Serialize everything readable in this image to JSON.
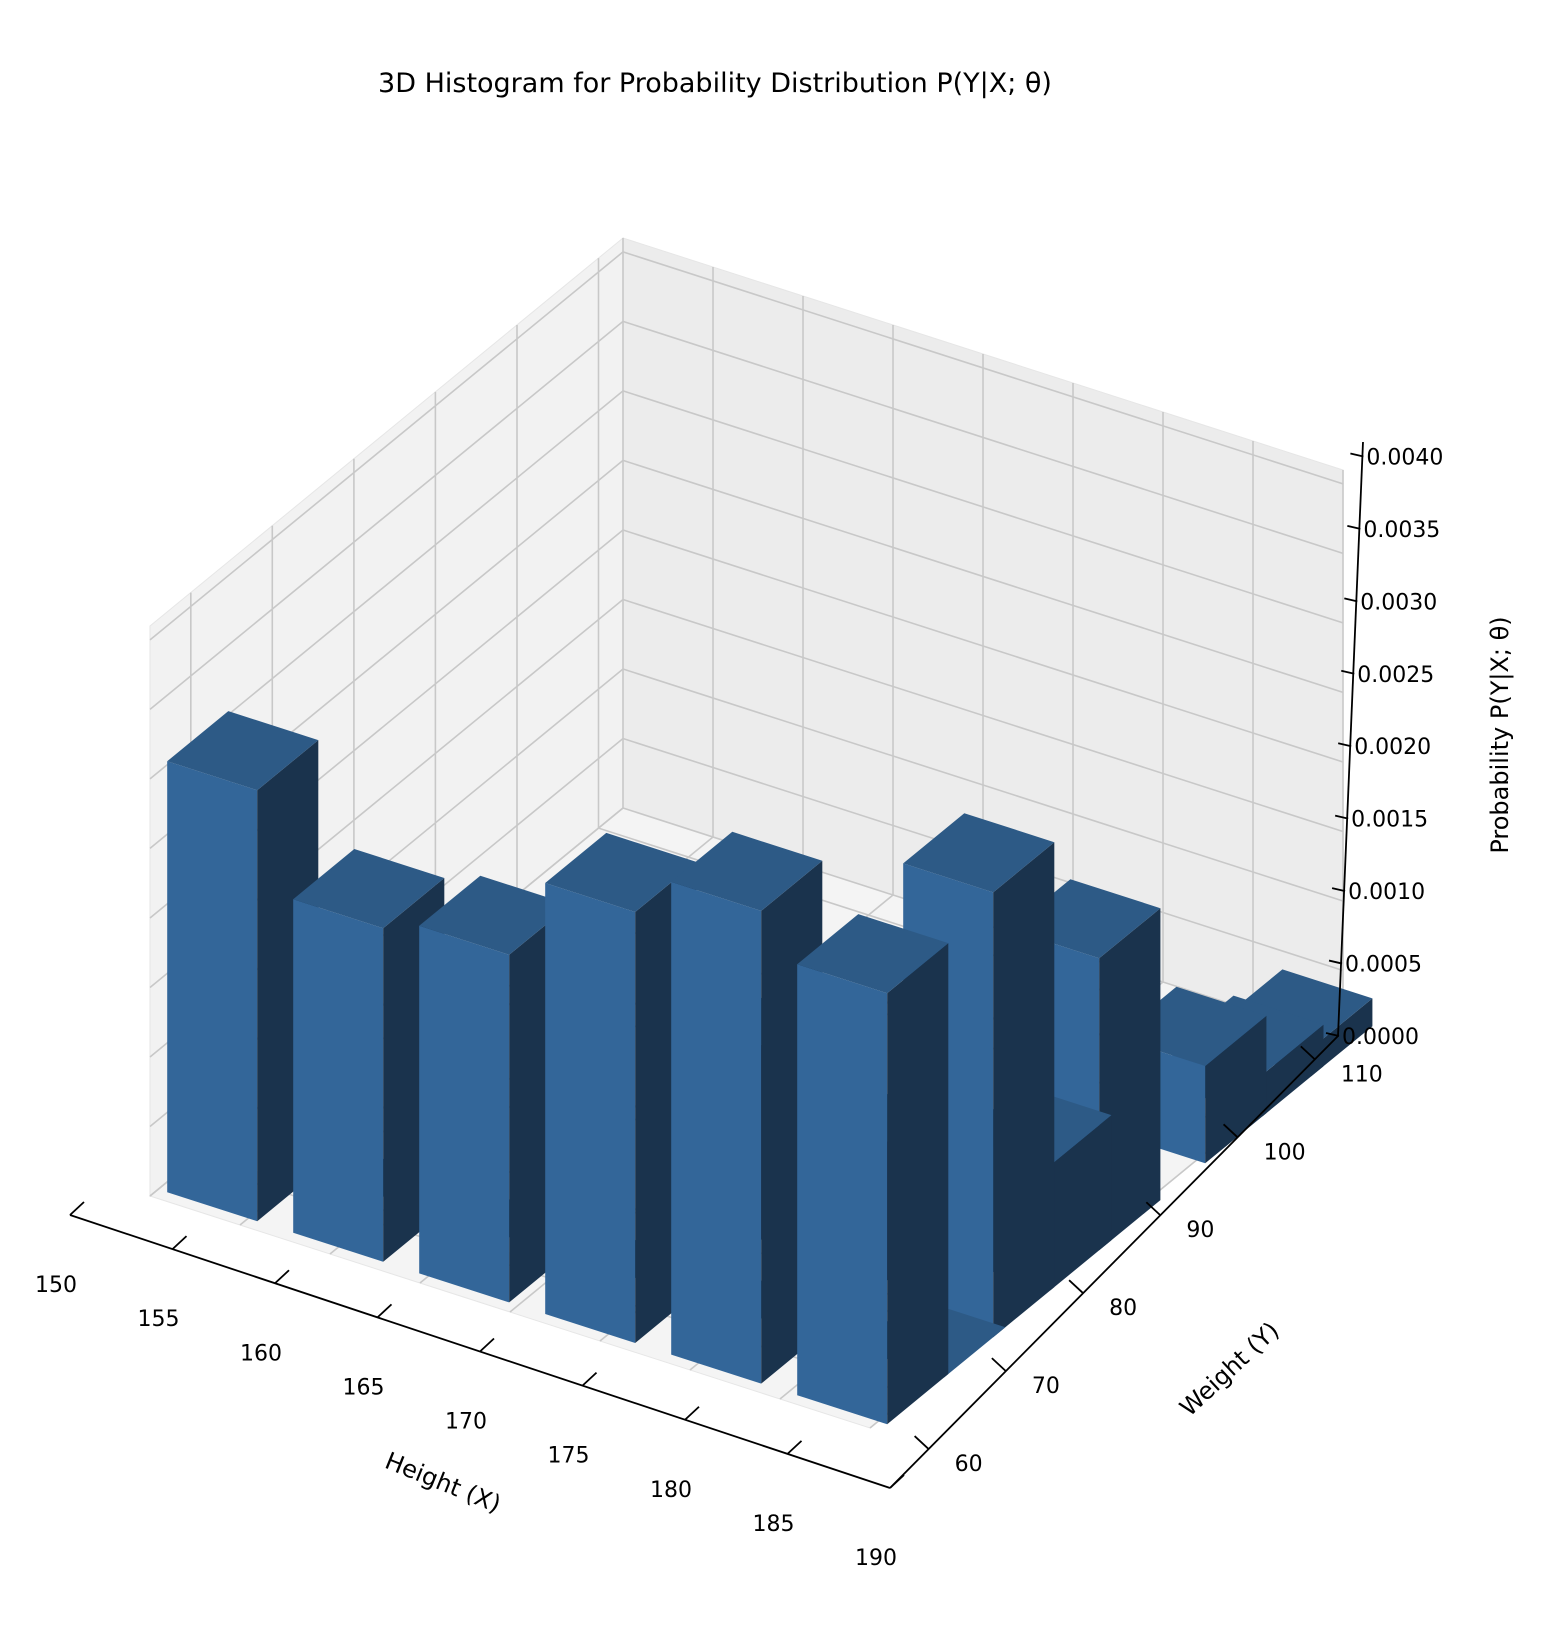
{
  "chart_data": {
    "type": "bar3d",
    "title": "3D Histogram for Probability Distribution P(Y|X; θ)",
    "xlabel": "Height (X)",
    "ylabel": "Weight (Y)",
    "zlabel": "Probability P(Y|X; θ)",
    "x_ticks": [
      "150",
      "155",
      "160",
      "165",
      "170",
      "175",
      "180",
      "185",
      "190"
    ],
    "y_ticks": [
      "60",
      "70",
      "80",
      "90",
      "100",
      "110"
    ],
    "z_ticks": [
      "0.0000",
      "0.0005",
      "0.0010",
      "0.0015",
      "0.0020",
      "0.0025",
      "0.0030",
      "0.0035",
      "0.0040"
    ],
    "xlim": [
      150,
      190
    ],
    "ylim": [
      55,
      113
    ],
    "zlim": [
      0,
      0.0041
    ],
    "grid": true,
    "bar_color": "#336699",
    "bars": [
      {
        "x": 150.5,
        "y": 56,
        "z": 0.0031
      },
      {
        "x": 157.5,
        "y": 56,
        "z": 0.0024
      },
      {
        "x": 164.5,
        "y": 56,
        "z": 0.0025
      },
      {
        "x": 171.5,
        "y": 56,
        "z": 0.0031
      },
      {
        "x": 171.5,
        "y": 69,
        "z": 0.0014
      },
      {
        "x": 178.5,
        "y": 56,
        "z": 0.0034
      },
      {
        "x": 178.5,
        "y": 69,
        "z": 0.001
      },
      {
        "x": 185.5,
        "y": 56,
        "z": 0.0031
      },
      {
        "x": 185.5,
        "y": 76,
        "z": 0.0009
      },
      {
        "x": 185.5,
        "y": 95,
        "z": 0.0007
      },
      {
        "x": 185.5,
        "y": 102,
        "z": 0.0003
      },
      {
        "x": 185.5,
        "y": 69,
        "z": 0.0032
      },
      {
        "x": 185.5,
        "y": 82,
        "z": 0.0021
      },
      {
        "x": 185.5,
        "y": 108,
        "z": 0.0002
      },
      {
        "x": 157.5,
        "y": 63,
        "z": 0.0
      },
      {
        "x": 164.5,
        "y": 63,
        "z": 0.0
      },
      {
        "x": 171.5,
        "y": 63,
        "z": 0.0
      },
      {
        "x": 178.5,
        "y": 63,
        "z": 0.0
      },
      {
        "x": 185.5,
        "y": 63,
        "z": 0.0
      }
    ]
  }
}
